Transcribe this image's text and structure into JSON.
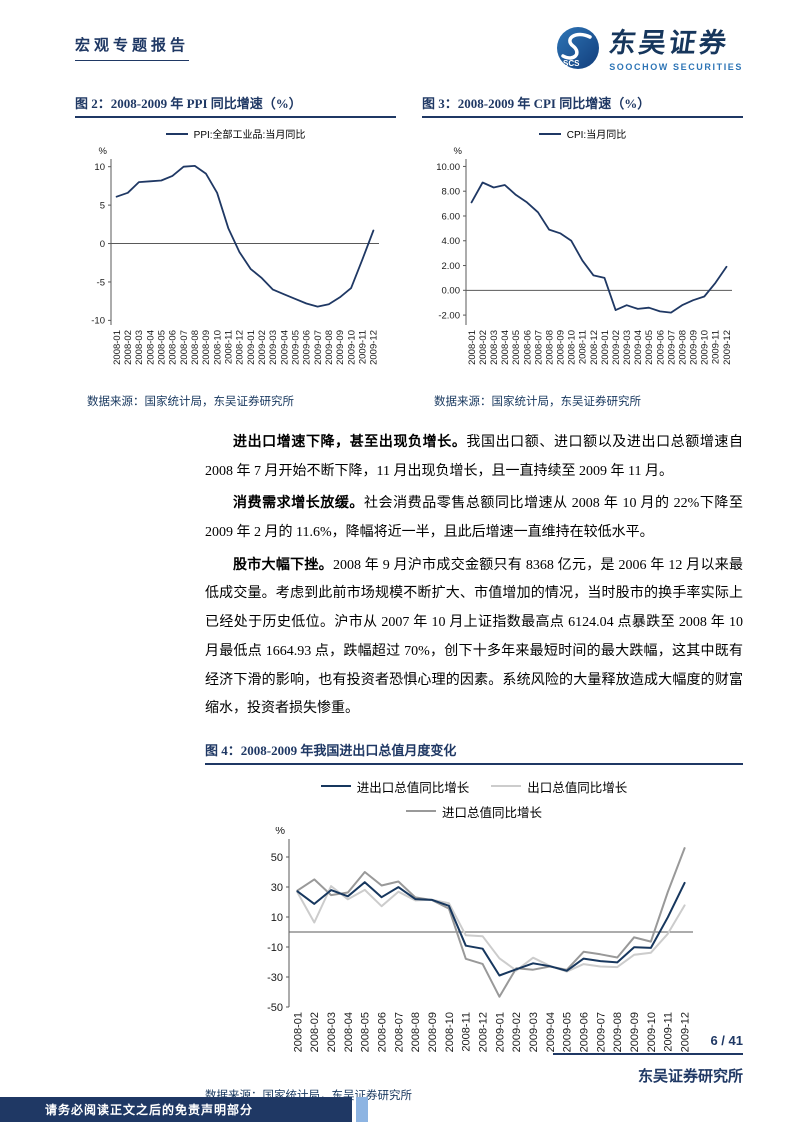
{
  "header": {
    "report_type": "宏观专题报告",
    "brand": {
      "cn": "东吴证券",
      "en": "SOOCHOW SECURITIES",
      "abbr": "SCS"
    }
  },
  "source_note": "数据来源：国家统计局，东吴证券研究所",
  "paragraphs": [
    {
      "lead": "进出口增速下降，甚至出现负增长。",
      "body": "我国出口额、进口额以及进出口总额增速自 2008 年 7 月开始不断下降，11 月出现负增长，且一直持续至 2009 年 11 月。"
    },
    {
      "lead": "消费需求增长放缓。",
      "body": "社会消费品零售总额同比增速从 2008 年 10 月的 22%下降至 2009 年 2 月的 11.6%，降幅将近一半，且此后增速一直维持在较低水平。"
    },
    {
      "lead": "股市大幅下挫。",
      "body": "2008 年 9 月沪市成交金额只有 8368 亿元，是 2006 年 12 月以来最低成交量。考虑到此前市场规模不断扩大、市值增加的情况，当时股市的换手率实际上已经处于历史低位。沪市从 2007 年 10 月上证指数最高点 6124.04 点暴跌至 2008 年 10 月最低点 1664.93 点，跌幅超过 70%，创下十多年来最短时间的最大跌幅，这其中既有经济下滑的影响，也有投资者恐惧心理的因素。系统风险的大量释放造成大幅度的财富缩水，投资者损失惨重。"
    }
  ],
  "footer": {
    "page": "6 / 41",
    "org": "东吴证券研究所",
    "disclaimer": "请务必阅读正文之后的免责声明部分"
  },
  "colors": {
    "navy": "#1F3864",
    "accent_blue": "#2E75B6",
    "gray_light": "#CCCCCC",
    "gray_mid": "#999999"
  },
  "chart_data": [
    {
      "id": "ppi",
      "type": "line",
      "title": "图 2：2008-2009 年 PPI 同比增速（%）",
      "xlabel": "",
      "ylabel": "%",
      "ylim": [
        -10,
        10
      ],
      "grid": false,
      "legend_position": "top",
      "yticks": [
        10,
        5,
        0,
        -5,
        -10
      ],
      "ytick_labels": [
        "10",
        "5",
        "0",
        "-5",
        "-10"
      ],
      "categories": [
        "2008-01",
        "2008-02",
        "2008-03",
        "2008-04",
        "2008-05",
        "2008-06",
        "2008-07",
        "2008-08",
        "2008-09",
        "2008-10",
        "2008-11",
        "2008-12",
        "2009-01",
        "2009-02",
        "2009-03",
        "2009-04",
        "2009-05",
        "2009-06",
        "2009-07",
        "2009-08",
        "2009-09",
        "2009-10",
        "2009-11",
        "2009-12"
      ],
      "series": [
        {
          "name": "PPI:全部工业品:当月同比",
          "color": "#1F3864",
          "values": [
            6.1,
            6.6,
            8.0,
            8.1,
            8.2,
            8.8,
            10.0,
            10.1,
            9.1,
            6.6,
            2.0,
            -1.1,
            -3.3,
            -4.5,
            -6.0,
            -6.6,
            -7.2,
            -7.8,
            -8.2,
            -7.9,
            -7.0,
            -5.8,
            -2.1,
            1.7
          ]
        }
      ]
    },
    {
      "id": "cpi",
      "type": "line",
      "title": "图 3：2008-2009 年 CPI 同比增速（%）",
      "xlabel": "",
      "ylabel": "%",
      "ylim": [
        -2,
        10
      ],
      "grid": false,
      "legend_position": "top",
      "yticks": [
        10,
        8,
        6,
        4,
        2,
        0,
        -2
      ],
      "ytick_labels": [
        "10.00",
        "8.00",
        "6.00",
        "4.00",
        "2.00",
        "0.00",
        "-2.00"
      ],
      "categories": [
        "2008-01",
        "2008-02",
        "2008-03",
        "2008-04",
        "2008-05",
        "2008-06",
        "2008-07",
        "2008-08",
        "2008-09",
        "2008-10",
        "2008-11",
        "2008-12",
        "2009-01",
        "2009-02",
        "2009-03",
        "2009-04",
        "2009-05",
        "2009-06",
        "2009-07",
        "2009-08",
        "2009-09",
        "2009-10",
        "2009-11",
        "2009-12"
      ],
      "series": [
        {
          "name": "CPI:当月同比",
          "color": "#1F3864",
          "values": [
            7.1,
            8.7,
            8.3,
            8.5,
            7.7,
            7.1,
            6.3,
            4.9,
            4.6,
            4.0,
            2.4,
            1.2,
            1.0,
            -1.6,
            -1.2,
            -1.5,
            -1.4,
            -1.7,
            -1.8,
            -1.2,
            -0.8,
            -0.5,
            0.6,
            1.9
          ]
        }
      ]
    },
    {
      "id": "trade",
      "type": "line",
      "title": "图 4：2008-2009 年我国进出口总值月度变化",
      "xlabel": "",
      "ylabel": "%",
      "ylim": [
        -50,
        50
      ],
      "grid": false,
      "legend_position": "top",
      "yticks": [
        50,
        30,
        10,
        -10,
        -30,
        -50
      ],
      "ytick_labels": [
        "50",
        "30",
        "10",
        "-10",
        "-30",
        "-50"
      ],
      "categories": [
        "2008-01",
        "2008-02",
        "2008-03",
        "2008-04",
        "2008-05",
        "2008-06",
        "2008-07",
        "2008-08",
        "2008-09",
        "2008-10",
        "2008-11",
        "2008-12",
        "2009-01",
        "2009-02",
        "2009-03",
        "2009-04",
        "2009-05",
        "2009-06",
        "2009-07",
        "2009-08",
        "2009-09",
        "2009-10",
        "2009-11",
        "2009-12"
      ],
      "series": [
        {
          "name": "进出口总值同比增长",
          "color": "#17375E",
          "values": [
            27.1,
            18.7,
            27.9,
            23.8,
            33.2,
            23.2,
            29.9,
            21.9,
            21.4,
            17.5,
            -9.1,
            -11.1,
            -29.0,
            -24.9,
            -20.9,
            -22.8,
            -25.9,
            -17.7,
            -19.4,
            -20.3,
            -10.1,
            -10.6,
            9.8,
            32.7
          ]
        },
        {
          "name": "出口总值同比增长",
          "color": "#CCCCCC",
          "values": [
            26.5,
            6.3,
            30.6,
            21.8,
            28.1,
            17.2,
            26.9,
            21.1,
            21.5,
            19.2,
            -2.2,
            -2.8,
            -17.5,
            -25.7,
            -17.1,
            -22.6,
            -26.4,
            -21.4,
            -23.0,
            -23.4,
            -15.2,
            -13.8,
            -1.2,
            17.7
          ]
        },
        {
          "name": "进口总值同比增长",
          "color": "#999999",
          "values": [
            27.6,
            35.1,
            24.6,
            26.3,
            40.0,
            31.0,
            33.7,
            23.1,
            21.3,
            15.6,
            -17.9,
            -21.3,
            -43.1,
            -24.1,
            -25.1,
            -23.0,
            -25.2,
            -13.2,
            -14.9,
            -17.0,
            -3.5,
            -6.4,
            26.7,
            55.9
          ]
        }
      ]
    }
  ]
}
